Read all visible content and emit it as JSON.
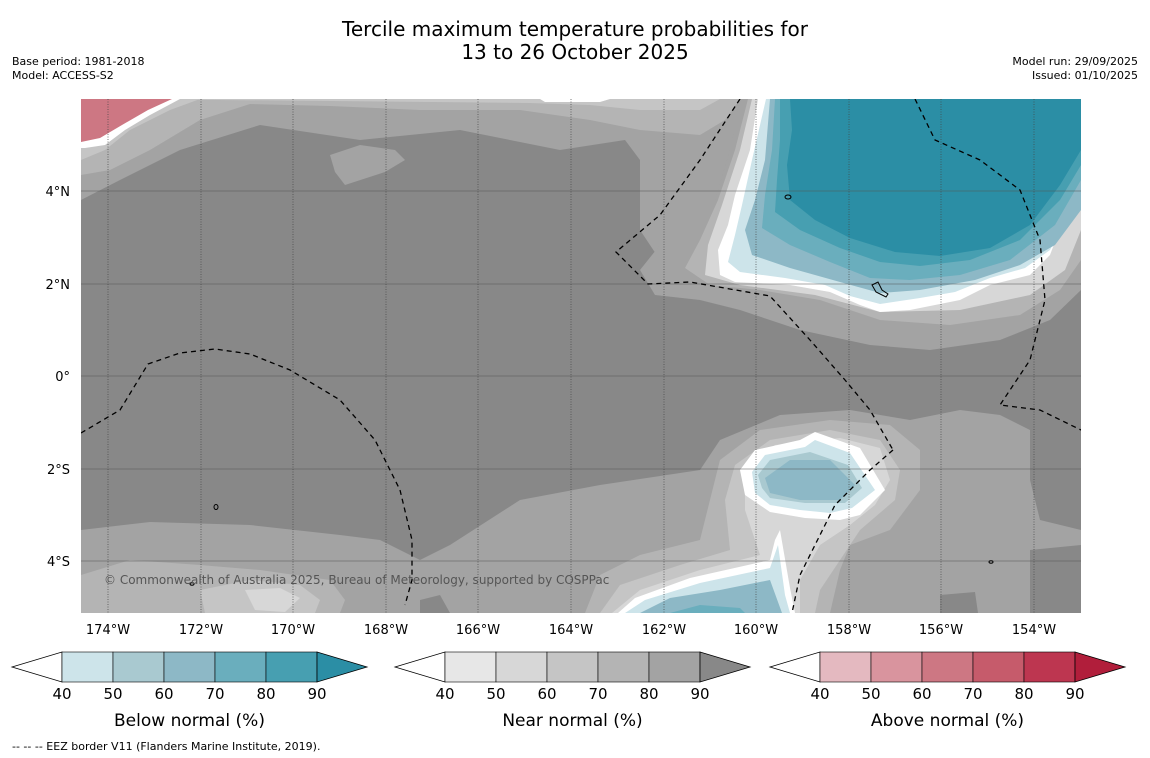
{
  "title_line1": "Tercile maximum temperature probabilities for",
  "title_line2": "13 to 26 October 2025",
  "base_period": "Base period: 1981-2018",
  "model": "Model: ACCESS-S2",
  "model_run": "Model run: 29/09/2025",
  "issued": "Issued: 01/10/2025",
  "copyright": "© Commonwealth of Australia 2025, Bureau of Meteorology, supported by COSPPac",
  "lon_labels": [
    "174°W",
    "172°W",
    "170°W",
    "168°W",
    "166°W",
    "164°W",
    "162°W",
    "160°W",
    "158°W",
    "156°W",
    "154°W"
  ],
  "lat_labels": [
    "4°N",
    "2°N",
    "0°",
    "2°S",
    "4°S"
  ],
  "colorbars": [
    {
      "label": "Below normal (%)",
      "ticks": [
        "40",
        "50",
        "60",
        "70",
        "80",
        "90"
      ],
      "colors": [
        "#cde4ea",
        "#a9c9d0",
        "#8db8c6",
        "#6aaebd",
        "#479fb1",
        "#2b8ea5"
      ]
    },
    {
      "label": "Near normal (%)",
      "ticks": [
        "40",
        "50",
        "60",
        "70",
        "80",
        "90"
      ],
      "colors": [
        "#e7e7e7",
        "#d7d7d7",
        "#c5c5c5",
        "#b4b4b4",
        "#a3a3a3",
        "#888888"
      ]
    },
    {
      "label": "Above normal (%)",
      "ticks": [
        "40",
        "50",
        "60",
        "70",
        "80",
        "90"
      ],
      "colors": [
        "#e4b9c0",
        "#d9949e",
        "#cd7783",
        "#c65b6b",
        "#bd3650",
        "#b11e3b"
      ]
    }
  ],
  "footnote": "--  --  -- EEZ border V11 (Flanders Marine Institute, 2019)."
}
